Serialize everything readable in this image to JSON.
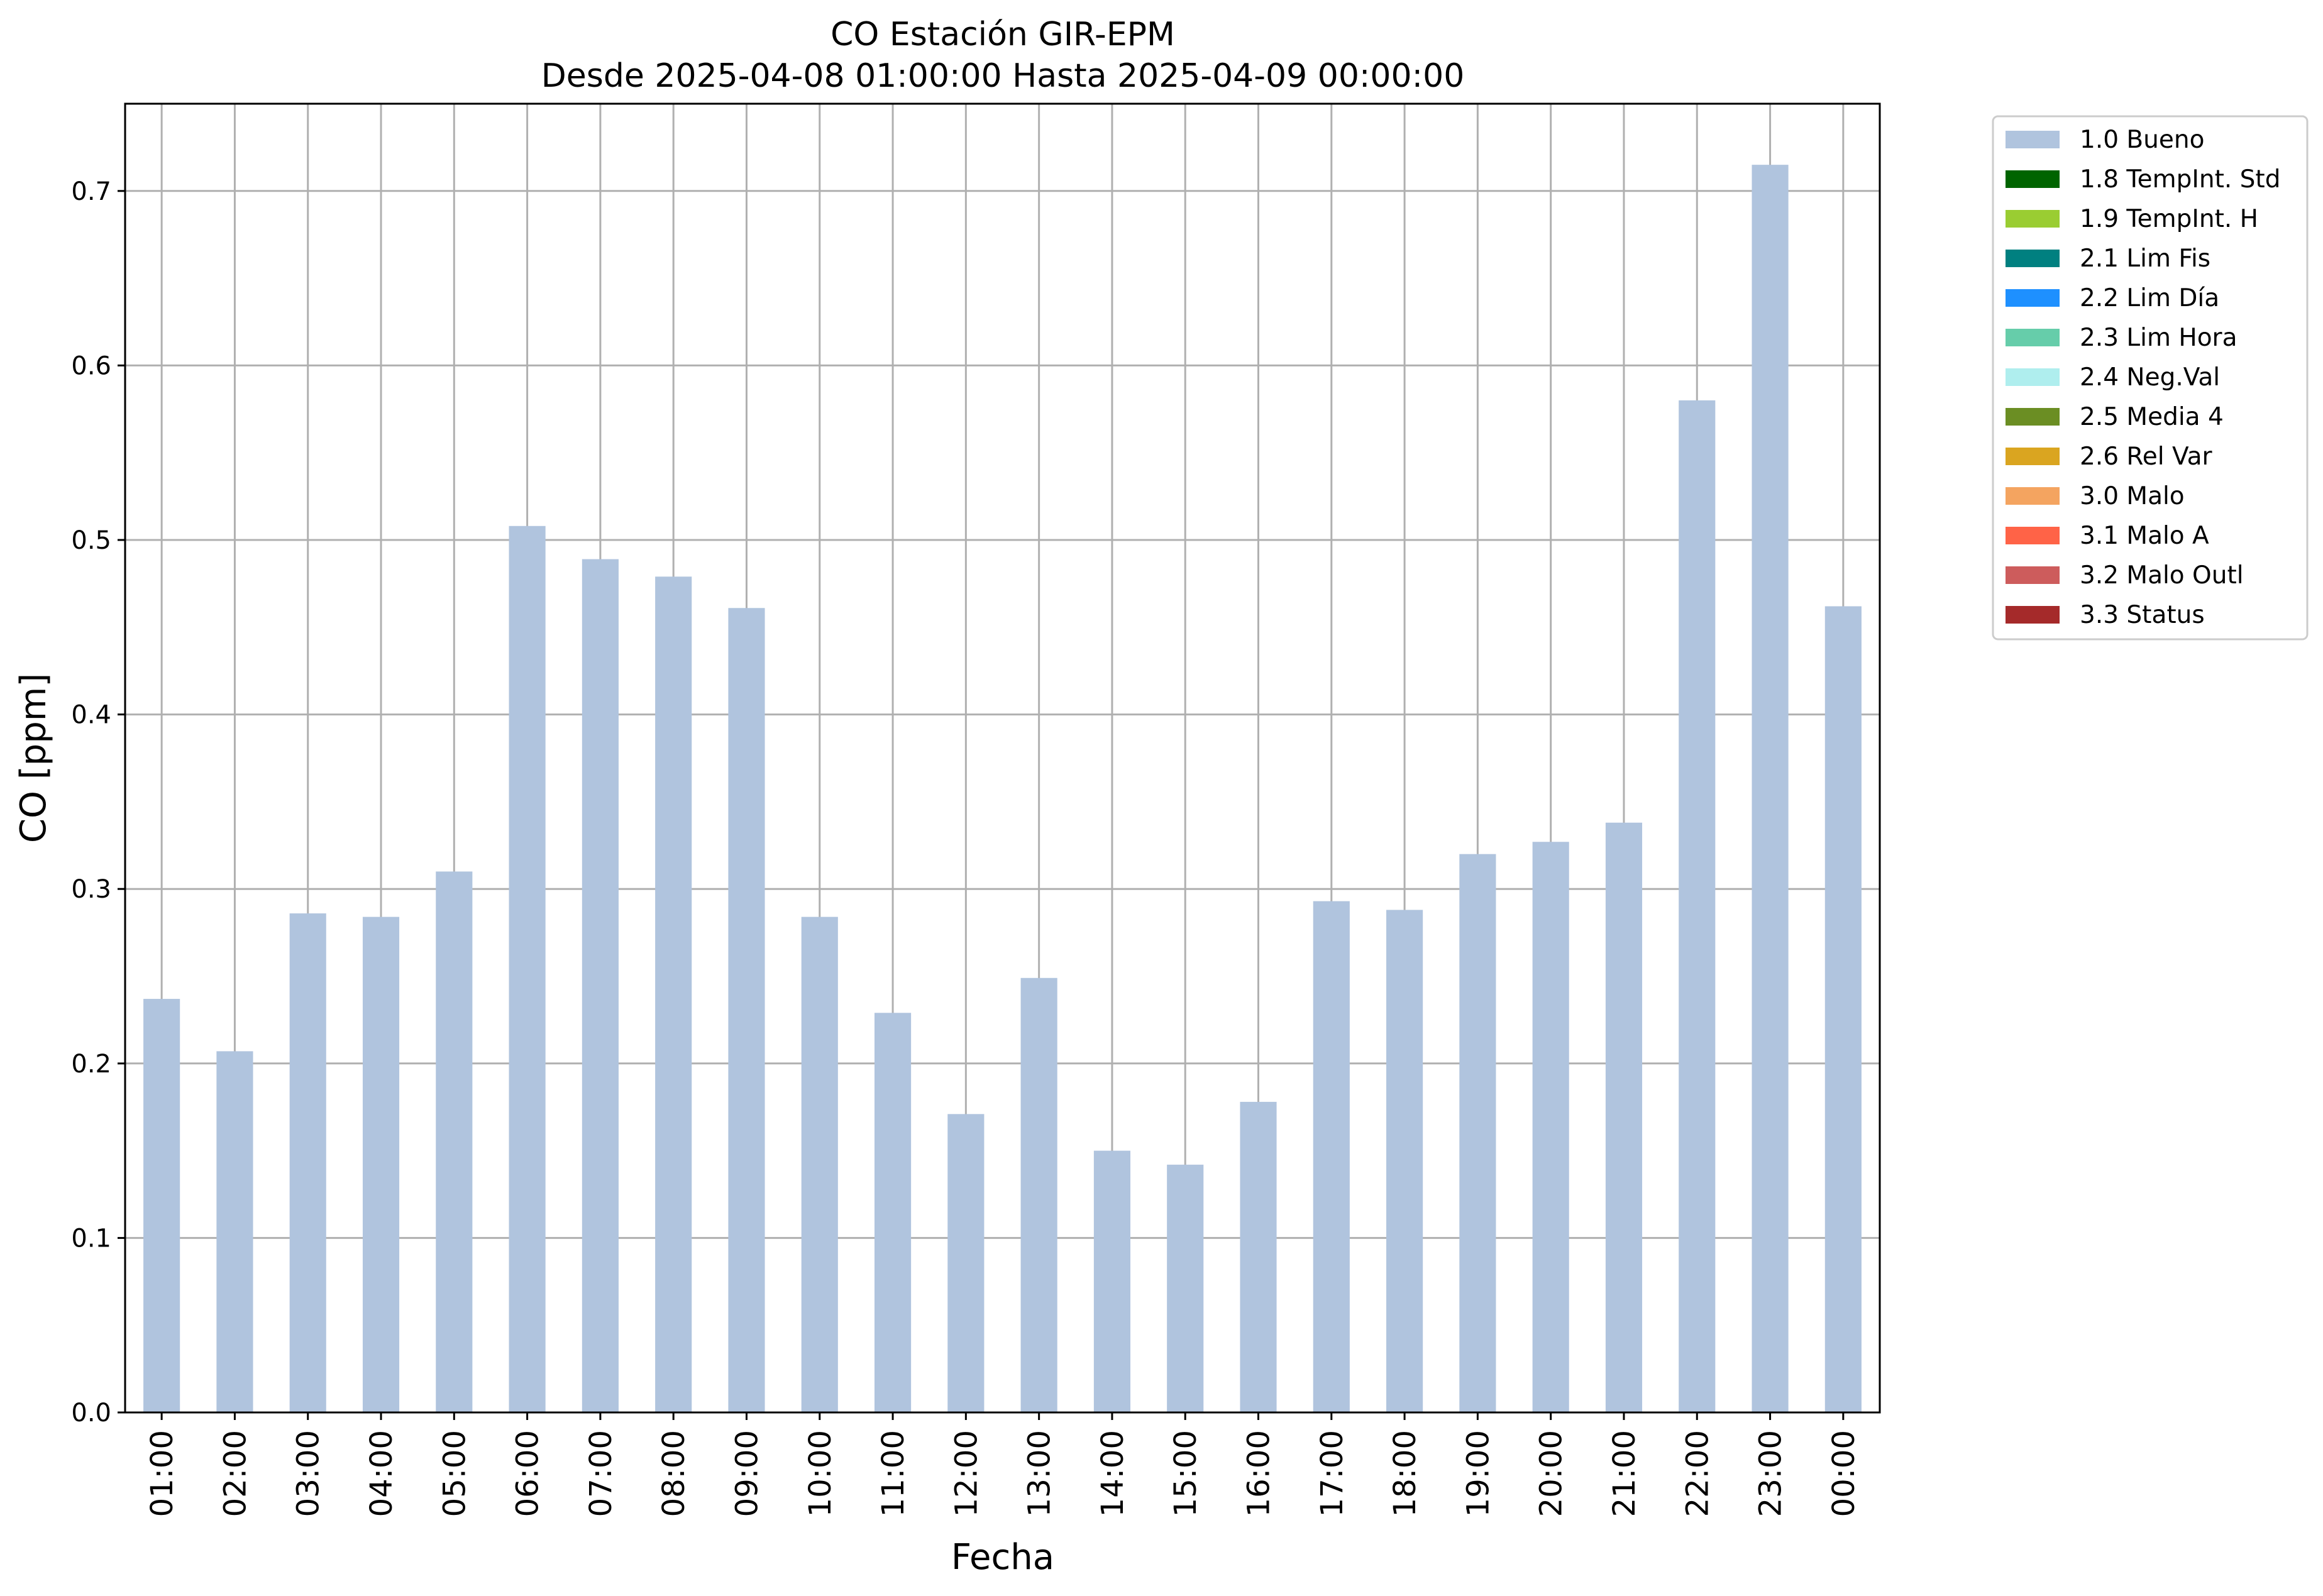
{
  "chart_data": {
    "type": "bar",
    "title": "CO Estación GIR-EPM",
    "subtitle": "Desde 2025-04-08 01:00:00 Hasta 2025-04-09 00:00:00",
    "xlabel": "Fecha",
    "ylabel": "CO [ppm]",
    "ylim": [
      0,
      0.75
    ],
    "yticks": [
      0.0,
      0.1,
      0.2,
      0.3,
      0.4,
      0.5,
      0.6,
      0.7
    ],
    "ytick_labels": [
      "0.0",
      "0.1",
      "0.2",
      "0.3",
      "0.4",
      "0.5",
      "0.6",
      "0.7"
    ],
    "grid": true,
    "legend_position": "outside-top-right",
    "categories": [
      "01:00",
      "02:00",
      "03:00",
      "04:00",
      "05:00",
      "06:00",
      "07:00",
      "08:00",
      "09:00",
      "10:00",
      "11:00",
      "12:00",
      "13:00",
      "14:00",
      "15:00",
      "16:00",
      "17:00",
      "18:00",
      "19:00",
      "20:00",
      "21:00",
      "22:00",
      "23:00",
      "00:00"
    ],
    "series": [
      {
        "name": "1.0 Bueno",
        "color": "#b0c4de",
        "values": [
          0.237,
          0.207,
          0.286,
          0.284,
          0.31,
          0.508,
          0.489,
          0.479,
          0.461,
          0.284,
          0.229,
          0.171,
          0.249,
          0.15,
          0.142,
          0.178,
          0.293,
          0.288,
          0.32,
          0.327,
          0.338,
          0.58,
          0.715,
          0.462
        ]
      }
    ],
    "legend": [
      {
        "label": "1.0 Bueno",
        "color": "#b0c4de"
      },
      {
        "label": "1.8 TempInt. Std",
        "color": "#006400"
      },
      {
        "label": "1.9 TempInt. H",
        "color": "#9acd32"
      },
      {
        "label": "2.1 Lim Fis",
        "color": "#008080"
      },
      {
        "label": "2.2 Lim Día",
        "color": "#1e90ff"
      },
      {
        "label": "2.3 Lim Hora",
        "color": "#66cdaa"
      },
      {
        "label": "2.4 Neg.Val",
        "color": "#afeeee"
      },
      {
        "label": "2.5 Media 4",
        "color": "#6b8e23"
      },
      {
        "label": "2.6 Rel Var",
        "color": "#daa520"
      },
      {
        "label": "3.0 Malo",
        "color": "#f4a460"
      },
      {
        "label": "3.1 Malo A",
        "color": "#ff6347"
      },
      {
        "label": "3.2 Malo Outl",
        "color": "#cd5c5c"
      },
      {
        "label": "3.3 Status",
        "color": "#a52a2a"
      }
    ]
  }
}
